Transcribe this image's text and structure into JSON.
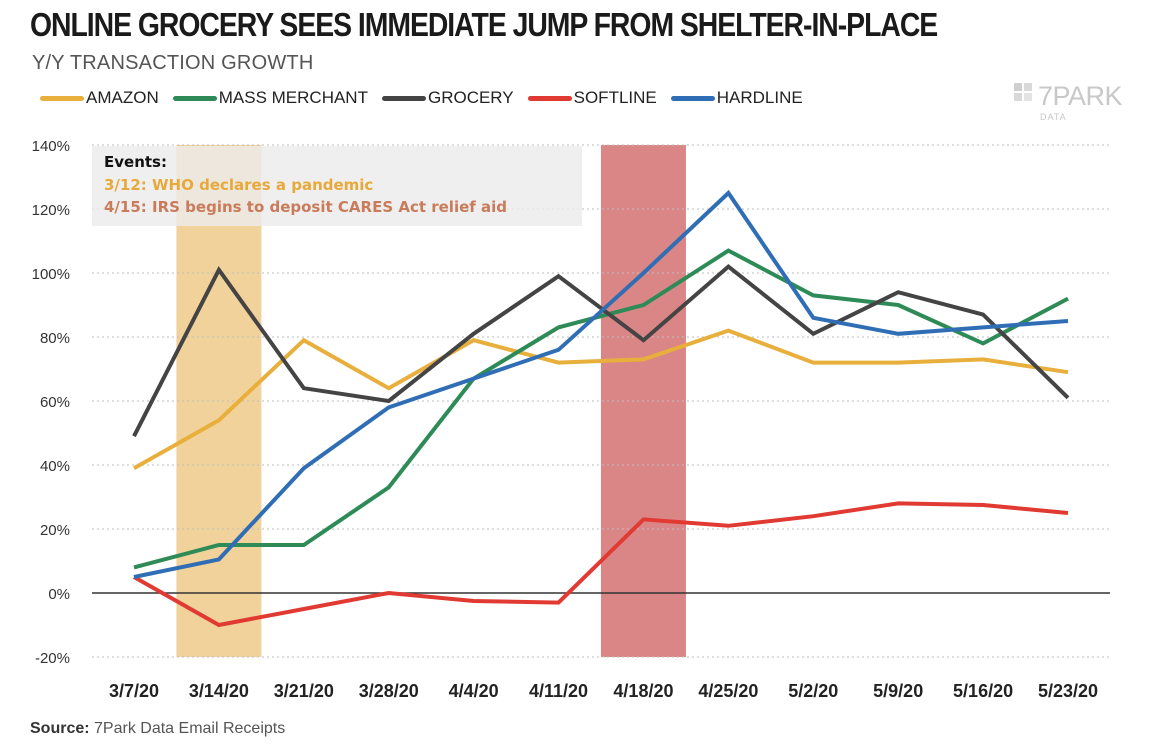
{
  "title": "ONLINE GROCERY SEES IMMEDIATE JUMP FROM SHELTER-IN-PLACE",
  "subtitle": "Y/Y TRANSACTION GROWTH",
  "logo": {
    "text": "7PARK",
    "sub": "DATA"
  },
  "source": {
    "label": "Source:",
    "text": "7Park Data Email Receipts"
  },
  "events": {
    "heading": "Events:",
    "items": [
      {
        "text": "3/12: WHO declares a pandemic",
        "color": "#E8A93B"
      },
      {
        "text": "4/15: IRS begins to deposit CARES Act relief aid",
        "color": "#C97B5A"
      }
    ]
  },
  "chart_data": {
    "type": "line",
    "title": "ONLINE GROCERY SEES IMMEDIATE JUMP FROM SHELTER-IN-PLACE",
    "ylabel": "Y/Y TRANSACTION GROWTH",
    "ylim": [
      -20,
      140
    ],
    "yticks": [
      "-20%",
      "0%",
      "20%",
      "40%",
      "60%",
      "80%",
      "100%",
      "120%",
      "140%"
    ],
    "ytick_values": [
      -20,
      0,
      20,
      40,
      60,
      80,
      100,
      120,
      140
    ],
    "categories": [
      "3/7/20",
      "3/14/20",
      "3/21/20",
      "3/28/20",
      "4/4/20",
      "4/11/20",
      "4/18/20",
      "4/25/20",
      "5/2/20",
      "5/9/20",
      "5/16/20",
      "5/23/20"
    ],
    "grid": "horizontal-dotted",
    "legend": "top-left",
    "highlight_bands": [
      {
        "category": "3/14/20",
        "color": "#F0D096",
        "event": "3/12: WHO declares a pandemic"
      },
      {
        "category": "4/18/20",
        "color": "#D98080",
        "event": "4/15: IRS begins to deposit CARES Act relief aid"
      }
    ],
    "series": [
      {
        "name": "AMAZON",
        "color": "#E8AF3C",
        "values": [
          39,
          54,
          79,
          64,
          79,
          72,
          73,
          82,
          72,
          72,
          73,
          69
        ]
      },
      {
        "name": "MASS MERCHANT",
        "color": "#2E8B57",
        "values": [
          8,
          15,
          15,
          33,
          67,
          83,
          90,
          107,
          93,
          90,
          78,
          92
        ]
      },
      {
        "name": "GROCERY",
        "color": "#444444",
        "values": [
          49,
          101,
          64,
          60,
          81,
          99,
          79,
          102,
          81,
          94,
          87,
          61
        ]
      },
      {
        "name": "SOFTLINE",
        "color": "#E03A32",
        "values": [
          5,
          -10,
          -5,
          0,
          -2.5,
          -3,
          23,
          21,
          24,
          28,
          27.5,
          25
        ]
      },
      {
        "name": "HARDLINE",
        "color": "#2F6EB5",
        "values": [
          5,
          10.5,
          39,
          58,
          67,
          76,
          100,
          125,
          86,
          81,
          83,
          85
        ]
      }
    ]
  }
}
